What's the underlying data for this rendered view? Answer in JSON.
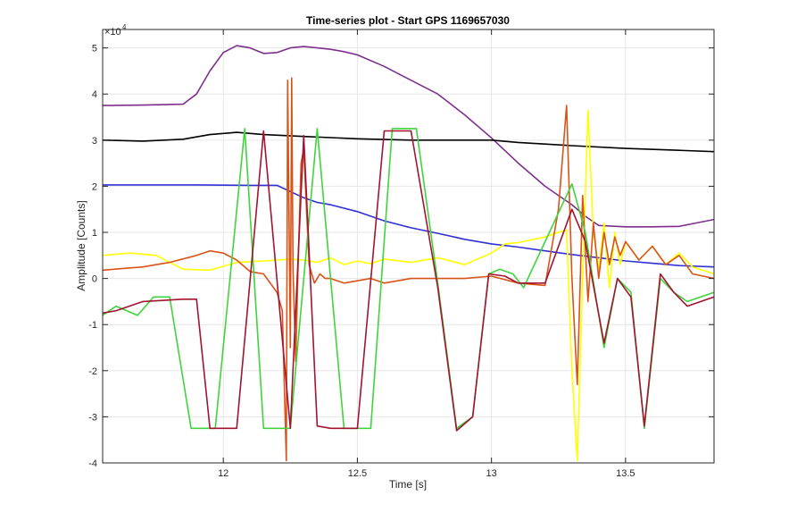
{
  "chart_data": {
    "type": "line",
    "title": "Time-series plot - Start GPS 1169657030",
    "xlabel": "Time [s]",
    "ylabel": "Amplitude [Counts]",
    "y_exponent_label": "×10",
    "y_exponent_power": "4",
    "xlim": [
      11.55,
      13.83
    ],
    "ylim": [
      -4,
      5.4
    ],
    "grid": true,
    "x_ticks": [
      12,
      12.5,
      13,
      13.5
    ],
    "x_tick_labels": [
      "12",
      "12.5",
      "13",
      "13.5"
    ],
    "y_ticks": [
      -4,
      -3,
      -2,
      -1,
      0,
      1,
      2,
      3,
      4,
      5
    ],
    "y_tick_labels": [
      "-4",
      "-3",
      "-2",
      "-1",
      "0",
      "1",
      "2",
      "3",
      "4",
      "5"
    ],
    "series": [
      {
        "color": "#7E2F8E",
        "x": [
          11.55,
          11.7,
          11.85,
          11.9,
          11.95,
          12.0,
          12.05,
          12.1,
          12.15,
          12.2,
          12.25,
          12.3,
          12.35,
          12.4,
          12.45,
          12.5,
          12.6,
          12.7,
          12.8,
          12.9,
          13.0,
          13.1,
          13.2,
          13.3,
          13.35,
          13.4,
          13.5,
          13.6,
          13.7,
          13.83
        ],
        "y": [
          3.75,
          3.76,
          3.78,
          4.0,
          4.5,
          4.9,
          5.05,
          5.0,
          4.88,
          4.9,
          5.0,
          5.03,
          5.0,
          4.97,
          4.92,
          4.85,
          4.6,
          4.3,
          4.0,
          3.55,
          3.05,
          2.5,
          2.0,
          1.6,
          1.35,
          1.15,
          1.12,
          1.12,
          1.13,
          1.28
        ]
      },
      {
        "color": "#000000",
        "x": [
          11.55,
          11.7,
          11.85,
          11.95,
          12.05,
          12.15,
          12.3,
          12.5,
          12.7,
          12.9,
          13.0,
          13.1,
          13.3,
          13.5,
          13.7,
          13.83
        ],
        "y": [
          3.0,
          2.98,
          3.02,
          3.12,
          3.17,
          3.12,
          3.08,
          3.03,
          3.0,
          3.0,
          3.0,
          2.95,
          2.88,
          2.82,
          2.78,
          2.75
        ]
      },
      {
        "color": "#2E30D6",
        "x": [
          11.55,
          11.7,
          11.9,
          12.1,
          12.2,
          12.3,
          12.35,
          12.4,
          12.5,
          12.6,
          12.7,
          12.8,
          12.9,
          13.0,
          13.1,
          13.2,
          13.3,
          13.4,
          13.5,
          13.6,
          13.7,
          13.83
        ],
        "y": [
          2.03,
          2.03,
          2.03,
          2.02,
          2.02,
          1.75,
          1.65,
          1.6,
          1.45,
          1.25,
          1.1,
          0.98,
          0.85,
          0.75,
          0.68,
          0.6,
          0.52,
          0.45,
          0.38,
          0.33,
          0.28,
          0.25
        ]
      },
      {
        "color": "#FFFF00",
        "x": [
          11.55,
          11.65,
          11.75,
          11.85,
          11.95,
          12.05,
          12.15,
          12.25,
          12.3,
          12.35,
          12.4,
          12.45,
          12.5,
          12.55,
          12.6,
          12.7,
          12.8,
          12.9,
          13.0,
          13.05,
          13.1,
          13.2,
          13.25,
          13.28,
          13.3,
          13.32,
          13.34,
          13.36,
          13.38,
          13.4,
          13.42,
          13.44,
          13.46,
          13.48,
          13.5,
          13.55,
          13.6,
          13.65,
          13.7,
          13.75,
          13.83
        ],
        "y": [
          0.5,
          0.55,
          0.5,
          0.2,
          0.18,
          0.35,
          0.38,
          0.42,
          0.4,
          0.35,
          0.45,
          0.3,
          0.38,
          0.32,
          0.42,
          0.35,
          0.45,
          0.3,
          0.55,
          0.75,
          0.78,
          0.9,
          1.0,
          1.05,
          -2.0,
          -3.95,
          0.0,
          3.65,
          1.0,
          0.2,
          1.2,
          -0.2,
          1.0,
          0.3,
          0.8,
          0.4,
          0.7,
          0.3,
          0.55,
          0.25,
          0.1
        ]
      },
      {
        "color": "#D95319",
        "x": [
          11.55,
          11.7,
          11.8,
          11.9,
          11.95,
          12.0,
          12.05,
          12.1,
          12.15,
          12.2,
          12.22,
          12.235,
          12.24,
          12.25,
          12.255,
          12.26,
          12.27,
          12.28,
          12.29,
          12.3,
          12.32,
          12.34,
          12.36,
          12.38,
          12.4,
          12.45,
          12.5,
          12.55,
          12.6,
          12.7,
          12.8,
          12.9,
          13.0,
          13.1,
          13.2,
          13.25,
          13.28,
          13.3,
          13.32,
          13.34,
          13.36,
          13.38,
          13.4,
          13.42,
          13.44,
          13.46,
          13.48,
          13.5,
          13.55,
          13.6,
          13.65,
          13.7,
          13.75,
          13.83
        ],
        "y": [
          0.18,
          0.25,
          0.35,
          0.5,
          0.6,
          0.55,
          0.4,
          0.15,
          0.1,
          -0.3,
          -0.7,
          -3.95,
          4.3,
          -1.5,
          4.35,
          0.2,
          -1.8,
          0.5,
          2.5,
          2.8,
          0.3,
          -0.1,
          0.1,
          0.0,
          0.0,
          -0.1,
          -0.05,
          0.0,
          -0.1,
          0.0,
          0.0,
          0.0,
          0.05,
          -0.1,
          -0.15,
          1.5,
          3.75,
          0.0,
          -2.3,
          1.8,
          -0.5,
          1.2,
          0.0,
          1.0,
          0.3,
          0.9,
          0.5,
          0.8,
          0.4,
          0.7,
          0.3,
          0.5,
          0.1,
          0.0
        ]
      },
      {
        "color": "#3FD43C",
        "x": [
          11.55,
          11.6,
          11.68,
          11.74,
          11.8,
          11.88,
          11.97,
          12.08,
          12.15,
          12.25,
          12.35,
          12.45,
          12.55,
          12.63,
          12.72,
          12.8,
          12.87,
          12.93,
          12.99,
          13.03,
          13.08,
          13.12,
          13.3,
          13.35,
          13.42,
          13.47,
          13.52,
          13.57,
          13.63,
          13.68,
          13.73,
          13.83
        ],
        "y": [
          -0.8,
          -0.6,
          -0.8,
          -0.4,
          -0.4,
          -3.25,
          -3.25,
          3.25,
          -3.25,
          -3.25,
          3.25,
          -3.25,
          -3.25,
          3.25,
          3.25,
          -0.1,
          -3.25,
          -3.0,
          0.1,
          0.2,
          0.1,
          -0.2,
          2.05,
          1.0,
          -1.5,
          0.0,
          -0.3,
          -3.25,
          0.0,
          -0.3,
          -0.5,
          -0.3
        ]
      },
      {
        "color": "#A2142F",
        "x": [
          11.55,
          11.6,
          11.7,
          11.85,
          11.9,
          11.95,
          12.05,
          12.15,
          12.25,
          12.3,
          12.35,
          12.4,
          12.5,
          12.6,
          12.7,
          12.8,
          12.87,
          12.93,
          12.99,
          13.05,
          13.1,
          13.2,
          13.3,
          13.35,
          13.42,
          13.47,
          13.52,
          13.57,
          13.63,
          13.68,
          13.73,
          13.83
        ],
        "y": [
          -0.75,
          -0.7,
          -0.5,
          -0.45,
          -0.45,
          -3.25,
          -3.25,
          3.2,
          -3.25,
          3.1,
          -3.2,
          -3.25,
          -3.25,
          3.2,
          3.2,
          -0.2,
          -3.3,
          -3.0,
          0.1,
          0.05,
          -0.1,
          -0.1,
          1.5,
          0.8,
          -1.4,
          0.0,
          -0.4,
          -3.2,
          0.1,
          -0.3,
          -0.6,
          -0.4
        ]
      }
    ]
  }
}
